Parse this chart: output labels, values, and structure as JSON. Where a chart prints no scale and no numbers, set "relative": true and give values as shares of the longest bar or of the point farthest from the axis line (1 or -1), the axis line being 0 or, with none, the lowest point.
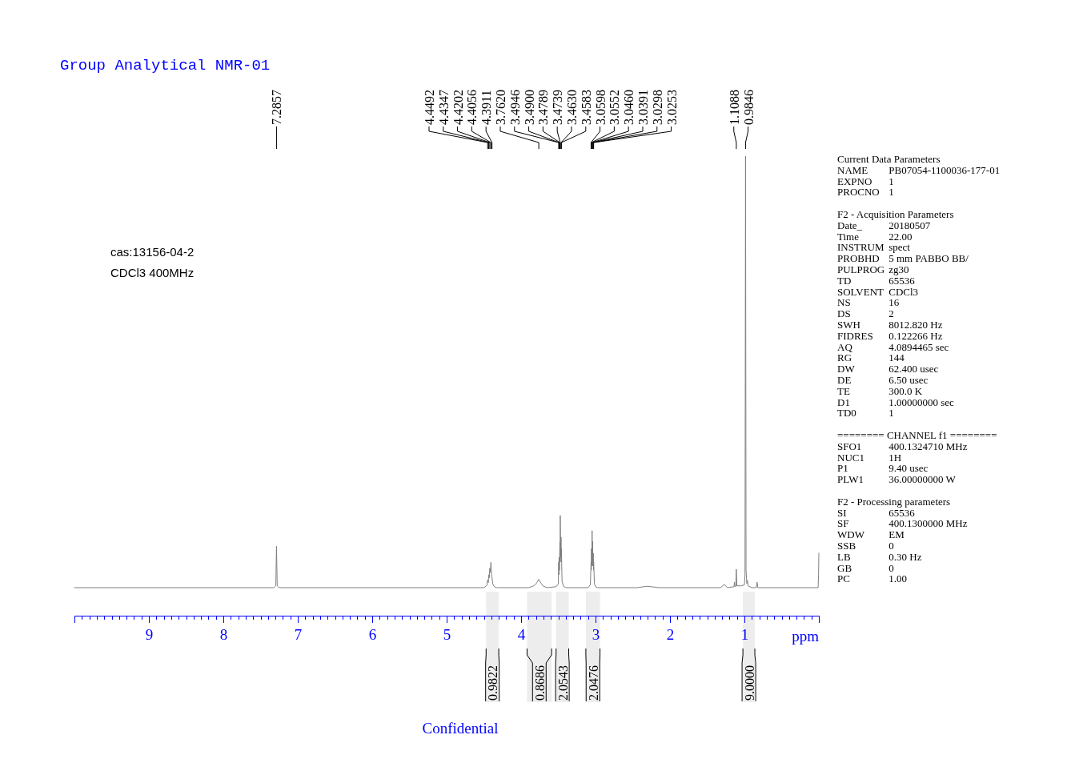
{
  "chart_data": {
    "type": "line",
    "title": "Group Analytical NMR-01",
    "xlabel": "ppm",
    "relative": true,
    "color": "#7f7f7f",
    "xlim": [
      10,
      0
    ],
    "xticks": [
      {
        "value": 0,
        "label": null
      },
      {
        "value": 0.1,
        "label": null
      },
      {
        "value": 0.2,
        "label": null
      },
      {
        "value": 0.3,
        "label": null
      },
      {
        "value": 0.4,
        "label": null
      },
      {
        "value": 0.5,
        "label": null
      },
      {
        "value": 0.6,
        "label": null
      },
      {
        "value": 0.7,
        "label": null
      },
      {
        "value": 0.8,
        "label": null
      },
      {
        "value": 0.9,
        "label": null
      },
      1,
      {
        "value": 1.1,
        "label": null
      },
      {
        "value": 1.2,
        "label": null
      },
      {
        "value": 1.3,
        "label": null
      },
      {
        "value": 1.4,
        "label": null
      },
      {
        "value": 1.5,
        "label": null
      },
      {
        "value": 1.6,
        "label": null
      },
      {
        "value": 1.7,
        "label": null
      },
      {
        "value": 1.8,
        "label": null
      },
      {
        "value": 1.9,
        "label": null
      },
      2,
      {
        "value": 2.1,
        "label": null
      },
      {
        "value": 2.2,
        "label": null
      },
      {
        "value": 2.3,
        "label": null
      },
      {
        "value": 2.4,
        "label": null
      },
      {
        "value": 2.5,
        "label": null
      },
      {
        "value": 2.6,
        "label": null
      },
      {
        "value": 2.7,
        "label": null
      },
      {
        "value": 2.8,
        "label": null
      },
      {
        "value": 2.9,
        "label": null
      },
      3,
      {
        "value": 3.1,
        "label": null
      },
      {
        "value": 3.2,
        "label": null
      },
      {
        "value": 3.3,
        "label": null
      },
      {
        "value": 3.4,
        "label": null
      },
      {
        "value": 3.5,
        "label": null
      },
      {
        "value": 3.6,
        "label": null
      },
      {
        "value": 3.7,
        "label": null
      },
      {
        "value": 3.8,
        "label": null
      },
      {
        "value": 3.9,
        "label": null
      },
      4,
      {
        "value": 4.1,
        "label": null
      },
      {
        "value": 4.2,
        "label": null
      },
      {
        "value": 4.3,
        "label": null
      },
      {
        "value": 4.4,
        "label": null
      },
      {
        "value": 4.5,
        "label": null
      },
      {
        "value": 4.6,
        "label": null
      },
      {
        "value": 4.7,
        "label": null
      },
      {
        "value": 4.8,
        "label": null
      },
      {
        "value": 4.9,
        "label": null
      },
      5,
      {
        "value": 5.1,
        "label": null
      },
      {
        "value": 5.2,
        "label": null
      },
      {
        "value": 5.3,
        "label": null
      },
      {
        "value": 5.4,
        "label": null
      },
      {
        "value": 5.5,
        "label": null
      },
      {
        "value": 5.6,
        "label": null
      },
      {
        "value": 5.7,
        "label": null
      },
      {
        "value": 5.8,
        "label": null
      },
      {
        "value": 5.9,
        "label": null
      },
      6,
      {
        "value": 6.1,
        "label": null
      },
      {
        "value": 6.2,
        "label": null
      },
      {
        "value": 6.3,
        "label": null
      },
      {
        "value": 6.4,
        "label": null
      },
      {
        "value": 6.5,
        "label": null
      },
      {
        "value": 6.6,
        "label": null
      },
      {
        "value": 6.7,
        "label": null
      },
      {
        "value": 6.8,
        "label": null
      },
      {
        "value": 6.9,
        "label": null
      },
      7,
      {
        "value": 7.1,
        "label": null
      },
      {
        "value": 7.2,
        "label": null
      },
      {
        "value": 7.3,
        "label": null
      },
      {
        "value": 7.4,
        "label": null
      },
      {
        "value": 7.5,
        "label": null
      },
      {
        "value": 7.6,
        "label": null
      },
      {
        "value": 7.7,
        "label": null
      },
      {
        "value": 7.8,
        "label": null
      },
      {
        "value": 7.9,
        "label": null
      },
      8,
      {
        "value": 8.1,
        "label": null
      },
      {
        "value": 8.2,
        "label": null
      },
      {
        "value": 8.3,
        "label": null
      },
      {
        "value": 8.4,
        "label": null
      },
      {
        "value": 8.5,
        "label": null
      },
      {
        "value": 8.6,
        "label": null
      },
      {
        "value": 8.7,
        "label": null
      },
      {
        "value": 8.8,
        "label": null
      },
      {
        "value": 8.9,
        "label": null
      },
      9,
      {
        "value": 9.1,
        "label": null
      },
      {
        "value": 9.2,
        "label": null
      },
      {
        "value": 9.3,
        "label": null
      },
      {
        "value": 9.4,
        "label": null
      },
      {
        "value": 9.5,
        "label": null
      },
      {
        "value": 9.6,
        "label": null
      },
      {
        "value": 9.7,
        "label": null
      },
      {
        "value": 9.8,
        "label": null
      },
      {
        "value": 9.9,
        "label": null
      },
      {
        "value": 10,
        "label": null
      }
    ],
    "x": [
      10,
      7.32,
      7.295,
      7.2857,
      7.276,
      7.25,
      4.5,
      4.46,
      4.4492,
      4.44,
      4.4347,
      4.428,
      4.4202,
      4.413,
      4.4056,
      4.398,
      4.3911,
      4.38,
      4.36,
      4.33,
      3.9,
      3.84,
      3.8,
      3.762,
      3.73,
      3.7,
      3.65,
      3.53,
      3.5,
      3.4946,
      3.492,
      3.49,
      3.484,
      3.4789,
      3.476,
      3.4739,
      3.468,
      3.463,
      3.461,
      3.4583,
      3.45,
      3.43,
      3.4,
      3.1,
      3.07,
      3.0598,
      3.057,
      3.0552,
      3.05,
      3.046,
      3.043,
      3.0391,
      3.035,
      3.0298,
      3.027,
      3.0253,
      3.015,
      3.0,
      2.97,
      2.45,
      2.3,
      2.15,
      1.32,
      1.27,
      1.23,
      1.14,
      1.134,
      1.128,
      1.115,
      1.1088,
      1.102,
      1.05,
      1.0,
      0.992,
      0.9846,
      0.978,
      0.968,
      0.96,
      0.952,
      0.9,
      0.84,
      0.83,
      0.82,
      0.01,
      0.004,
      0
    ],
    "values": [
      0.061,
      0.061,
      0.065,
      0.151,
      0.065,
      0.061,
      0.061,
      0.066,
      0.078,
      0.072,
      0.089,
      0.082,
      0.103,
      0.094,
      0.116,
      0.089,
      0.084,
      0.069,
      0.063,
      0.061,
      0.061,
      0.064,
      0.069,
      0.079,
      0.07,
      0.064,
      0.061,
      0.063,
      0.069,
      0.117,
      0.089,
      0.127,
      0.099,
      0.161,
      0.117,
      0.218,
      0.127,
      0.171,
      0.117,
      0.146,
      0.075,
      0.064,
      0.061,
      0.061,
      0.067,
      0.117,
      0.099,
      0.146,
      0.108,
      0.185,
      0.117,
      0.162,
      0.108,
      0.136,
      0.099,
      0.117,
      0.07,
      0.063,
      0.061,
      0.061,
      0.064,
      0.061,
      0.061,
      0.068,
      0.061,
      0.063,
      0.073,
      0.063,
      0.064,
      0.101,
      0.065,
      0.065,
      0.067,
      0.089,
      1,
      0.099,
      0.07,
      0.077,
      0.065,
      0.061,
      0.061,
      0.073,
      0.061,
      0.061,
      0.089,
      0.136
    ],
    "bands": [
      {
        "axis": "x",
        "from": 4.47,
        "to": 4.3,
        "label": "0.9822"
      },
      {
        "axis": "x",
        "from": 3.92,
        "to": 3.59,
        "label": "0.8686"
      },
      {
        "axis": "x",
        "from": 3.53,
        "to": 3.36,
        "label": "2.0543"
      },
      {
        "axis": "x",
        "from": 3.13,
        "to": 2.94,
        "label": "2.0476"
      },
      {
        "axis": "x",
        "from": 1.02,
        "to": 0.86,
        "label": "9.0000"
      }
    ],
    "annotations": [
      "cas:13156-04-2",
      "CDCl3 400MHz",
      "Current Data Parameters",
      "NAME\tPB07054-1100036-177-01",
      "EXPNO\t1",
      "PROCNO\t1",
      "F2 - Acquisition Parameters",
      "Date_\t20180507",
      "Time\t22.00",
      "INSTRUM\tspect",
      "PROBHD\t5 mm PABBO BB/",
      "PULPROG\tzg30",
      "TD\t65536",
      "SOLVENT\tCDCl3",
      "NS\t16",
      "DS\t2",
      "SWH\t8012.820 Hz",
      "FIDRES\t0.122266 Hz",
      "AQ\t4.0894465 sec",
      "RG\t144",
      "DW\t62.400 usec",
      "DE\t6.50 usec",
      "TE\t300.0 K",
      "D1\t1.00000000 sec",
      "TD0\t1",
      "======== CHANNEL f1 ========",
      "SFO1\t400.1324710 MHz",
      "NUC1\t1H",
      "P1\t9.40 usec",
      "PLW1\t36.00000000 W",
      "F2 - Processing parameters",
      "SI\t65536",
      "SF\t400.1300000 MHz",
      "WDW\tEM",
      "SSB\t0",
      "LB\t0.30 Hz",
      "GB\t0",
      "PC\t1.00",
      "Confidential",
      "7.2857",
      "4.4492",
      "4.4347",
      "4.4202",
      "4.4056",
      "4.3911",
      "3.7620",
      "3.4946",
      "3.4900",
      "3.4789",
      "3.4739",
      "3.4630",
      "3.4583",
      "3.0598",
      "3.0552",
      "3.0460",
      "3.0391",
      "3.0298",
      "3.0253",
      "1.1088",
      "0.9846"
    ]
  }
}
